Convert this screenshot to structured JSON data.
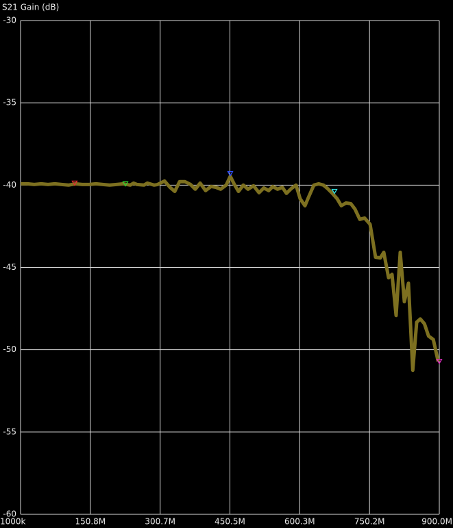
{
  "chart_data": {
    "type": "line",
    "title": "S21 Gain (dB)",
    "x": [
      1,
      15.7,
      30.4,
      45.1,
      59.9,
      74.6,
      89.3,
      104,
      118.7,
      133.4,
      148.1,
      162.8,
      177.6,
      192.3,
      207,
      221.7,
      236.4,
      243.8,
      251.1,
      265.8,
      273.2,
      287.9,
      295.3,
      310,
      321.8,
      332.1,
      342.4,
      354.1,
      365.9,
      376.2,
      386.5,
      398.3,
      410,
      420.3,
      430.6,
      442.4,
      451.2,
      460.1,
      468.9,
      479.2,
      489.5,
      501.3,
      513,
      523.3,
      533.6,
      542.5,
      552.8,
      563.1,
      571.9,
      582.2,
      592.5,
      601.3,
      611.6,
      618.9,
      630.7,
      641,
      651.3,
      660.2,
      670.5,
      680.8,
      689.6,
      699.9,
      710.2,
      719,
      729.3,
      739.6,
      751.4,
      763.2,
      773.5,
      780.8,
      791.1,
      798.5,
      807.3,
      816.1,
      825,
      833.8,
      843.1,
      851.5,
      859.3,
      868.1,
      876.9,
      887.2,
      897.5
    ],
    "values": [
      -39.92,
      -39.92,
      -39.96,
      -39.92,
      -39.96,
      -39.92,
      -39.96,
      -40,
      -39.92,
      -39.96,
      -39.96,
      -39.92,
      -39.96,
      -40,
      -39.96,
      -39.92,
      -40,
      -39.88,
      -39.96,
      -40,
      -39.88,
      -40,
      -39.96,
      -39.75,
      -40.13,
      -40.38,
      -39.79,
      -39.79,
      -39.96,
      -40.25,
      -39.88,
      -40.33,
      -40.08,
      -40.13,
      -40.25,
      -40,
      -39.46,
      -39.96,
      -40.38,
      -40,
      -40.25,
      -40.04,
      -40.46,
      -40.17,
      -40.33,
      -40.08,
      -40.25,
      -40.13,
      -40.5,
      -40.21,
      -40,
      -40.83,
      -41.25,
      -40.75,
      -40,
      -39.92,
      -40,
      -40.21,
      -40.5,
      -40.83,
      -41.25,
      -41.08,
      -41.13,
      -41.46,
      -42.08,
      -42,
      -42.38,
      -44.38,
      -44.42,
      -44.08,
      -45.63,
      -45.42,
      -47.92,
      -44.08,
      -47.08,
      -45.96,
      -51.25,
      -48.33,
      -48.13,
      -48.42,
      -49.17,
      -49.38,
      -50.71
    ],
    "color": "#7d7020",
    "markers": [
      {
        "x": 117.2,
        "value": -39.88,
        "color": "#e03030"
      },
      {
        "x": 226.1,
        "value": -39.92,
        "color": "#30d030"
      },
      {
        "x": 451.2,
        "value": -39.3,
        "color": "#3050ff"
      },
      {
        "x": 674.9,
        "value": -40.38,
        "color": "#30e0e0"
      },
      {
        "x": 900,
        "value": -50.71,
        "color": "#e030c0"
      }
    ],
    "xlim": [
      1,
      900
    ],
    "xticks": [
      {
        "value": 1,
        "label": "1000k"
      },
      {
        "value": 150.8,
        "label": "150.8M"
      },
      {
        "value": 300.7,
        "label": "300.7M"
      },
      {
        "value": 450.5,
        "label": "450.5M"
      },
      {
        "value": 600.3,
        "label": "600.3M"
      },
      {
        "value": 750.2,
        "label": "750.2M"
      },
      {
        "value": 900,
        "label": "900.0M"
      }
    ],
    "ylim": [
      -60,
      -30
    ],
    "yticks": [
      -30,
      -35,
      -40,
      -45,
      -50,
      -55,
      -60
    ],
    "grid": true
  }
}
